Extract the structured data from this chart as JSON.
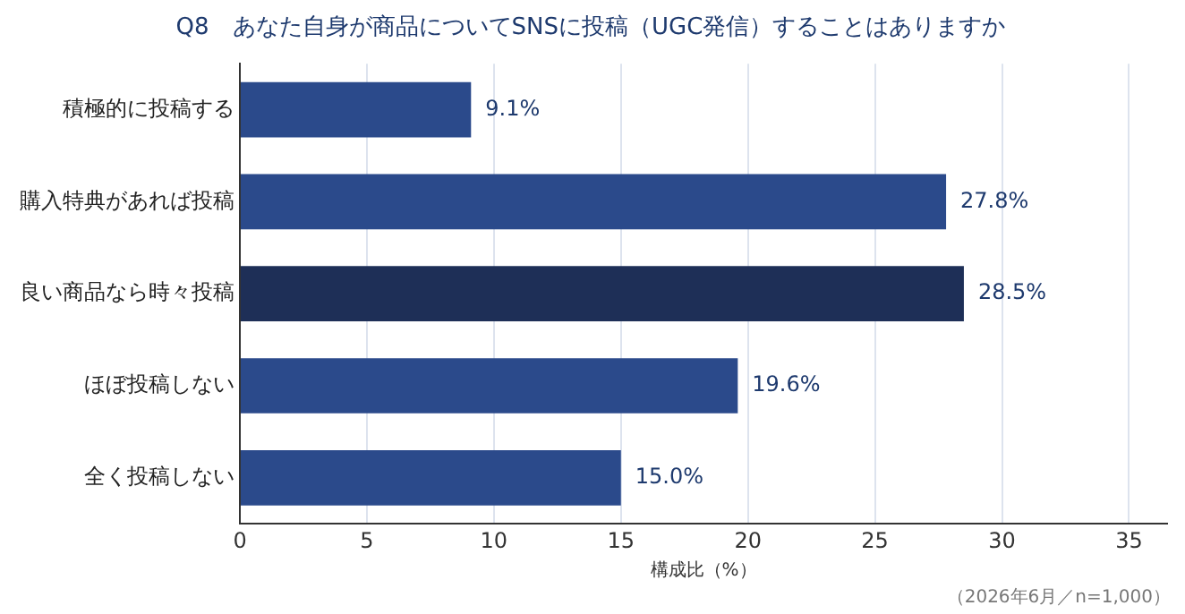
{
  "chart_data": {
    "type": "bar",
    "orientation": "horizontal",
    "title": "Q8　あなた自身が商品についてSNSに投稿（UGC発信）することはありますか",
    "xlabel": "構成比（%）",
    "categories": [
      "積極的に投稿する",
      "購入特典があれば投稿",
      "良い商品なら時々投稿",
      "ほぼ投稿しない",
      "全く投稿しない"
    ],
    "values": [
      9.1,
      27.8,
      28.5,
      19.6,
      15.0
    ],
    "value_labels": [
      "9.1%",
      "27.8%",
      "28.5%",
      "19.6%",
      "15.0%"
    ],
    "colors": [
      "#2b4a8b",
      "#2b4a8b",
      "#1e2f57",
      "#2b4a8b",
      "#2b4a8b"
    ],
    "xlim": [
      0,
      36.5
    ],
    "xticks": [
      0,
      5,
      10,
      15,
      20,
      25,
      30,
      35
    ],
    "grid": "x",
    "legend": false,
    "annotations": [
      "（2026年6月／n=1,000）"
    ]
  }
}
